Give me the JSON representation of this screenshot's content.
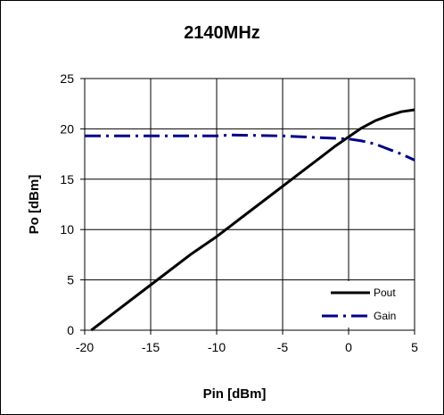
{
  "chart_data": {
    "type": "line",
    "title": "2140MHz",
    "xlabel": "Pin [dBm]",
    "ylabel": "Po [dBm]",
    "xlim": [
      -20,
      5
    ],
    "ylim": [
      0,
      25
    ],
    "xticks": [
      -20,
      -15,
      -10,
      -5,
      0,
      5
    ],
    "yticks": [
      0,
      5,
      10,
      15,
      20,
      25
    ],
    "grid": true,
    "legend": "bottom-right",
    "series": [
      {
        "name": "Pout",
        "color": "#000000",
        "style": "solid",
        "x": [
          -19.5,
          -18,
          -16,
          -14,
          -12,
          -10,
          -8,
          -6,
          -4,
          -2,
          -1,
          0,
          1,
          2,
          3,
          4,
          5
        ],
        "y": [
          0,
          1.5,
          3.5,
          5.5,
          7.5,
          9.3,
          11.3,
          13.3,
          15.3,
          17.3,
          18.3,
          19.2,
          20.1,
          20.8,
          21.3,
          21.7,
          21.9
        ]
      },
      {
        "name": "Gain",
        "color": "#00008B",
        "style": "dashdot",
        "x": [
          -20,
          -15,
          -10,
          -9,
          -5,
          0,
          1,
          2,
          3,
          4,
          5
        ],
        "y": [
          19.3,
          19.3,
          19.3,
          19.4,
          19.3,
          19.0,
          18.8,
          18.5,
          18.0,
          17.5,
          16.9
        ]
      }
    ]
  }
}
